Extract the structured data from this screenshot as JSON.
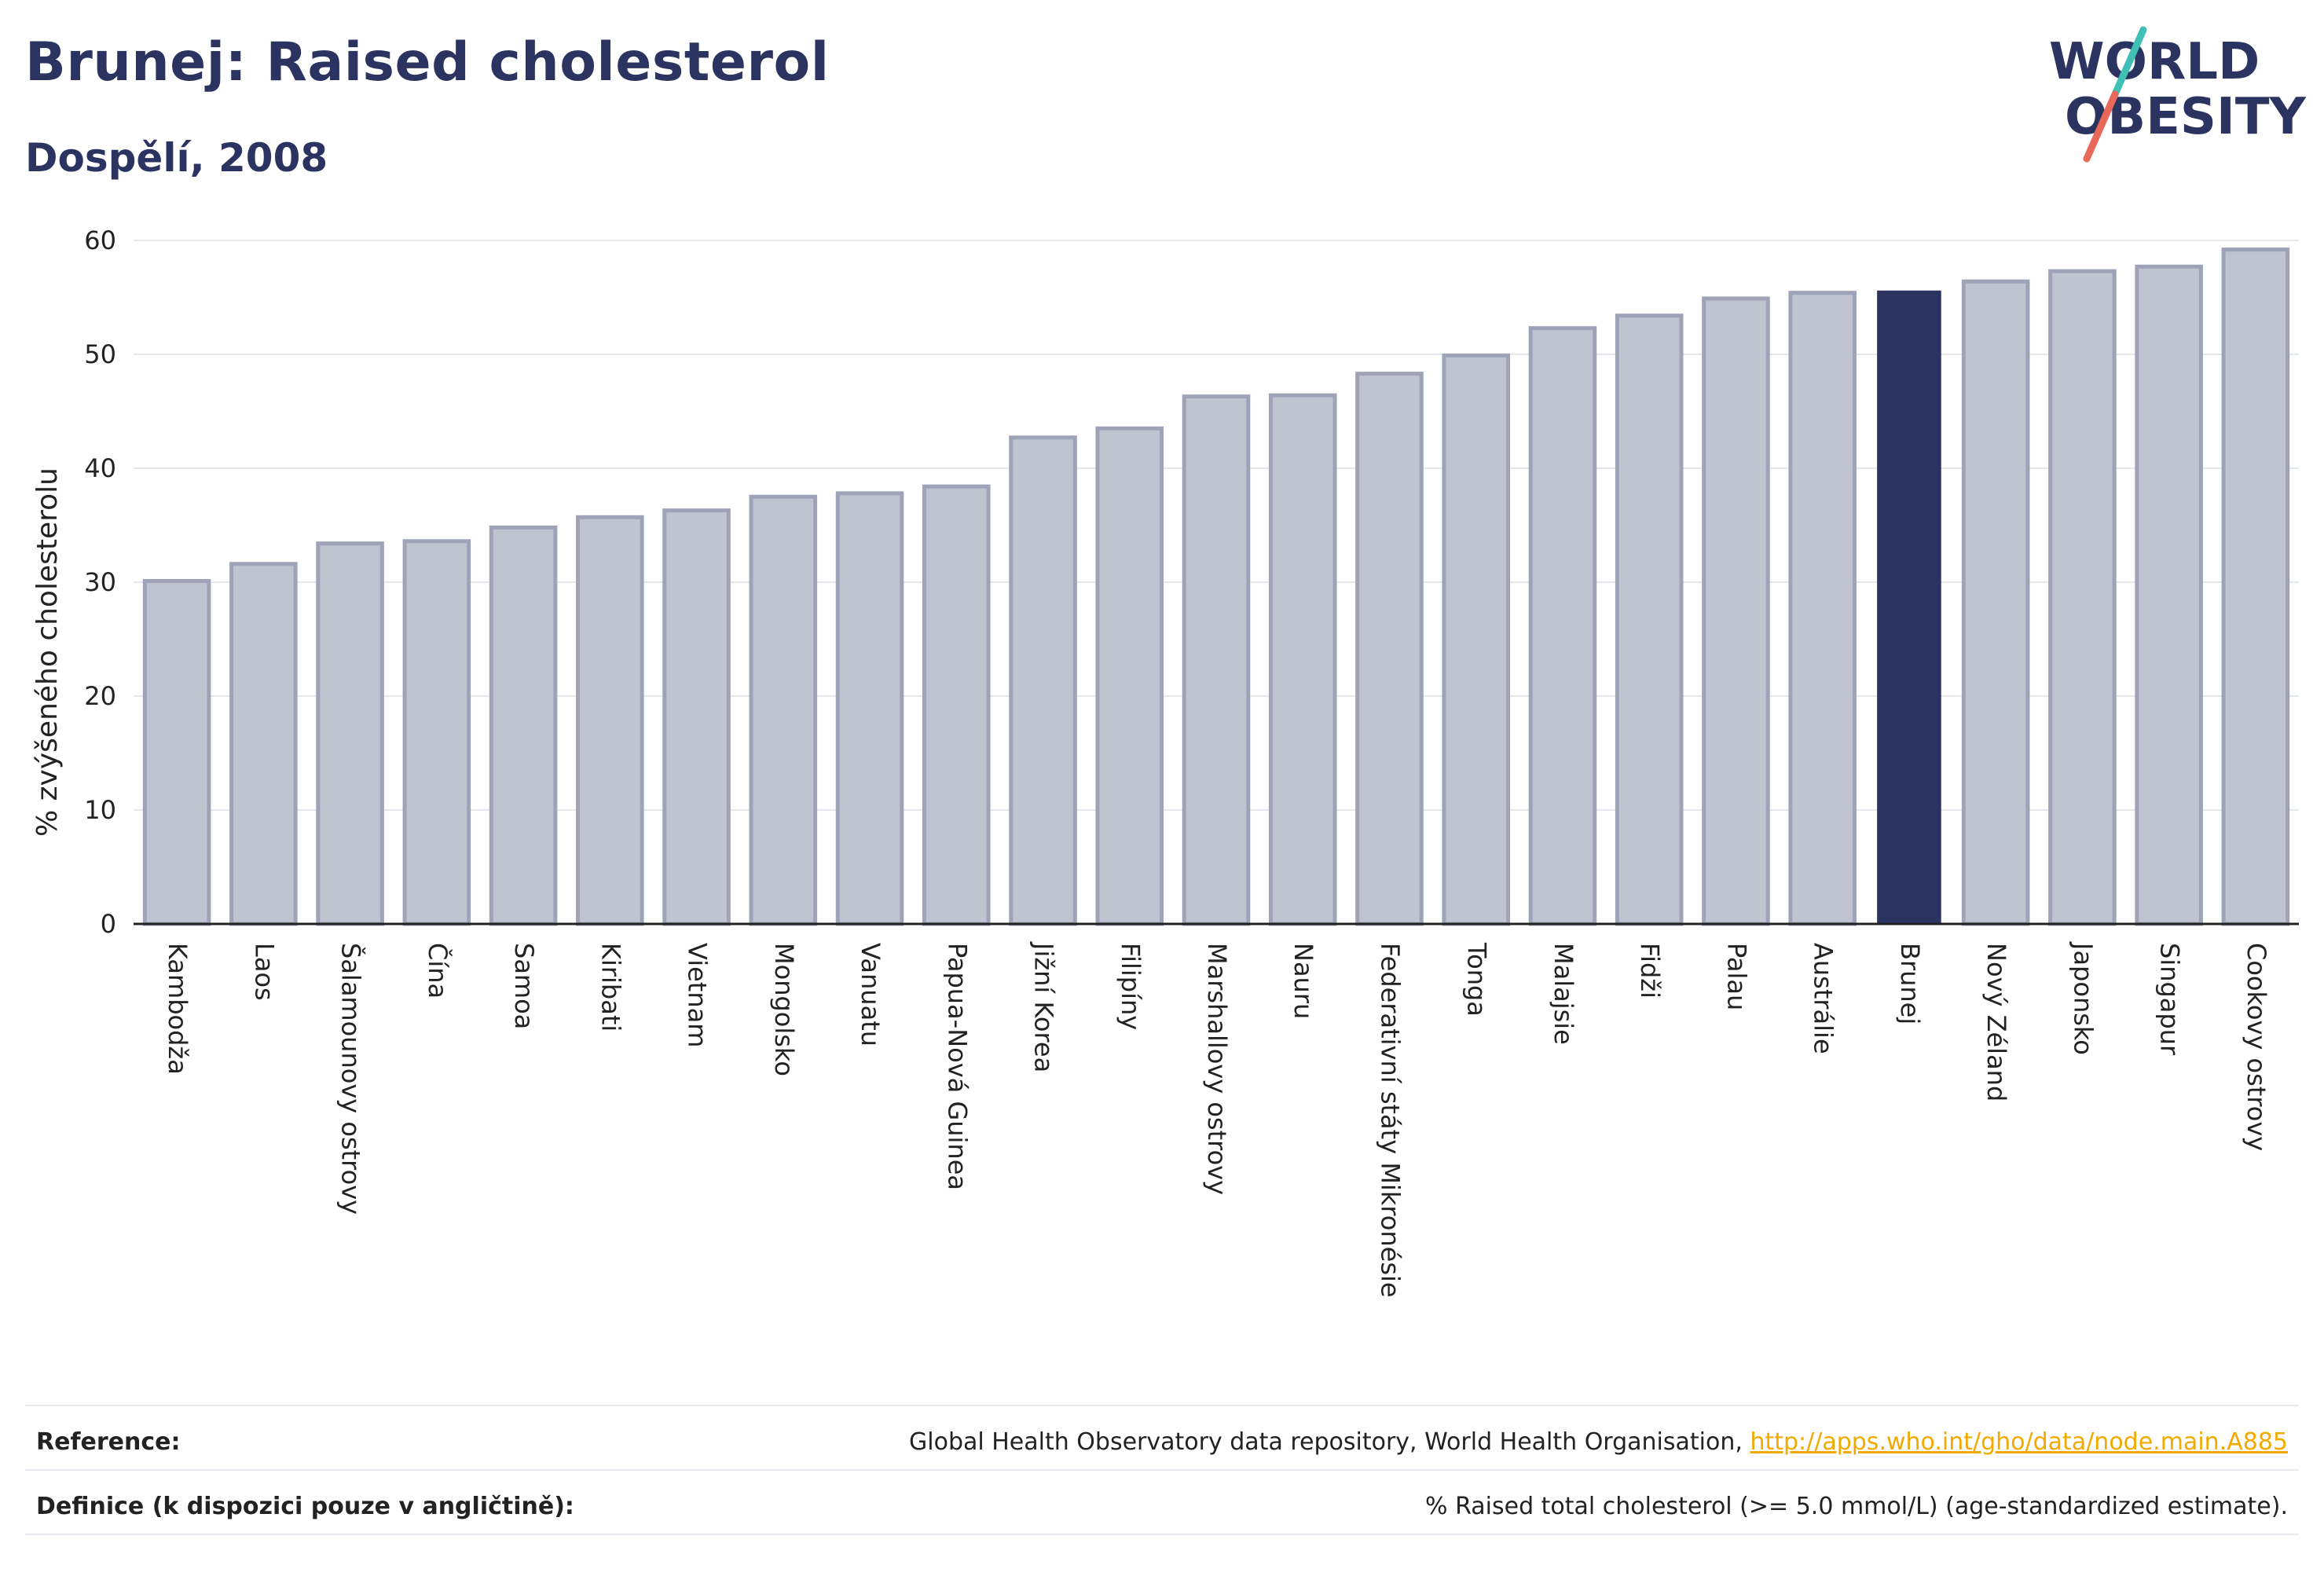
{
  "header": {
    "title": "Brunej: Raised cholesterol",
    "subtitle": "Dospělí, 2008"
  },
  "logo": {
    "line1": "WORLD",
    "line2": "OBESITY",
    "text_color": "#2b3460",
    "slash_colors": [
      "#3fbfb6",
      "#e8685a"
    ]
  },
  "chart_data": {
    "type": "bar",
    "title": "",
    "xlabel": "",
    "ylabel": "% zvýšeného cholesterolu",
    "ylim": [
      0,
      60
    ],
    "yticks": [
      0,
      10,
      20,
      30,
      40,
      50,
      60
    ],
    "grid": true,
    "categories": [
      "Kambodža",
      "Laos",
      "Šalamounovy ostrovy",
      "Čína",
      "Samoa",
      "Kiribati",
      "Vietnam",
      "Mongolsko",
      "Vanuatu",
      "Papua-Nová Guinea",
      "Jižní Korea",
      "Filipíny",
      "Marshallovy ostrovy",
      "Nauru",
      "Federativní státy Mikronésie",
      "Tonga",
      "Malajsie",
      "Fidži",
      "Palau",
      "Austrálie",
      "Brunej",
      "Nový Zéland",
      "Japonsko",
      "Singapur",
      "Cookovy ostrovy"
    ],
    "values": [
      30.1,
      31.6,
      33.4,
      33.6,
      34.8,
      35.7,
      36.3,
      37.5,
      37.8,
      38.4,
      42.7,
      43.5,
      46.3,
      46.4,
      48.3,
      49.9,
      52.3,
      53.4,
      54.9,
      55.4,
      55.6,
      56.4,
      57.3,
      57.7,
      59.2
    ],
    "highlight": "Brunej",
    "colors": {
      "bar": "#c0c3d0",
      "bar_edge": "#9ea3b8",
      "highlight": "#2b3460",
      "grid": "#e6e7ec",
      "axis": "#222222"
    }
  },
  "footer": {
    "reference_label": "Reference:",
    "reference_text": "Global Health Observatory data repository, World Health Organisation, ",
    "reference_link": "http://apps.who.int/gho/data/node.main.A885",
    "definition_label": "Definice (k dispozici pouze v angličtině):",
    "definition_text": "% Raised total cholesterol (>= 5.0 mmol/L) (age-standardized estimate)."
  }
}
